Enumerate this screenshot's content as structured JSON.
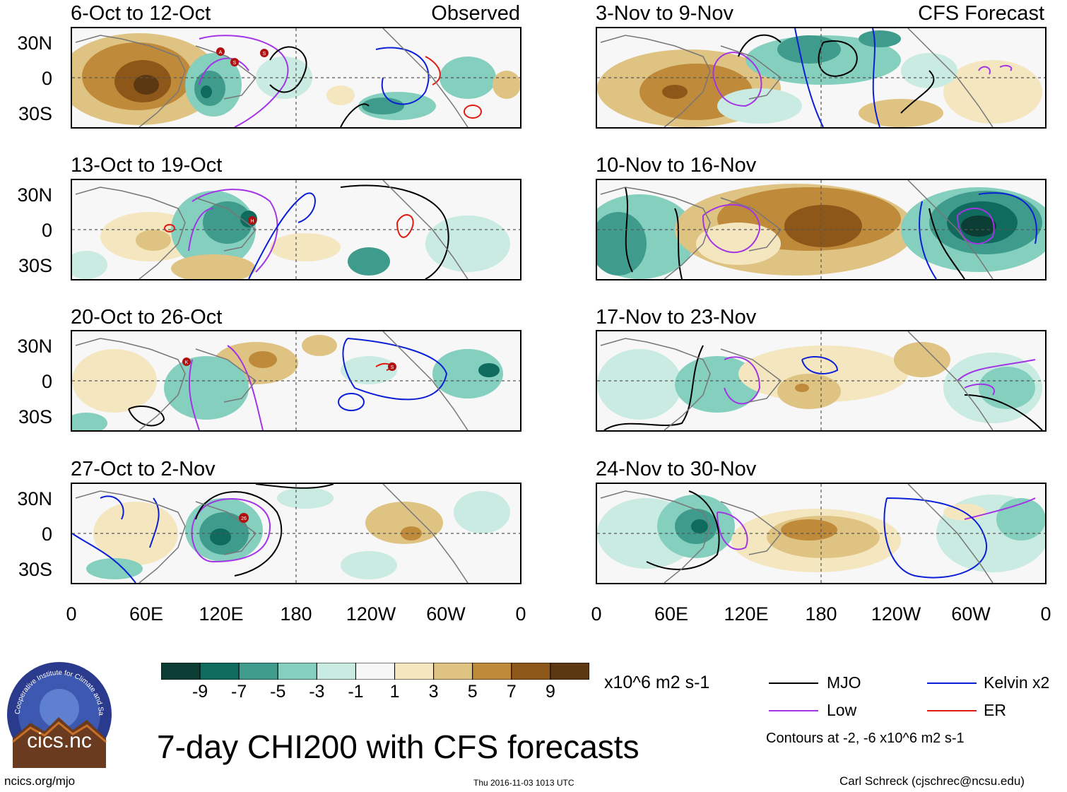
{
  "title": "7-day CHI200 with CFS forecasts",
  "observed_label": "Observed",
  "forecast_label": "CFS Forecast",
  "panels_left": [
    {
      "title": "6-Oct to 12-Oct"
    },
    {
      "title": "13-Oct to 19-Oct"
    },
    {
      "title": "20-Oct to 26-Oct"
    },
    {
      "title": "27-Oct to 2-Nov"
    }
  ],
  "panels_right": [
    {
      "title": "3-Nov to 9-Nov"
    },
    {
      "title": "10-Nov to 16-Nov"
    },
    {
      "title": "17-Nov to 23-Nov"
    },
    {
      "title": "24-Nov to 30-Nov"
    }
  ],
  "lat_labels": [
    "30N",
    "0",
    "30S"
  ],
  "lon_labels": [
    "0",
    "60E",
    "120E",
    "180",
    "120W",
    "60W",
    "0"
  ],
  "colorbar": {
    "labels": [
      "-9",
      "-7",
      "-5",
      "-3",
      "-1",
      "1",
      "3",
      "5",
      "7",
      "9"
    ],
    "units": "x10^6 m2 s-1",
    "colors": [
      "#0b3d35",
      "#0f6b5e",
      "#3f9c8c",
      "#84cfbd",
      "#c9ebe1",
      "#f7f7f7",
      "#f4e6bf",
      "#dfc383",
      "#bf8a3a",
      "#8c5718",
      "#5b3811"
    ]
  },
  "legend": {
    "items": [
      {
        "label": "MJO",
        "color": "#000000"
      },
      {
        "label": "Kelvin x2",
        "color": "#0b1fd6"
      },
      {
        "label": "Low",
        "color": "#a335e6"
      },
      {
        "label": "ER",
        "color": "#e01b12"
      }
    ],
    "note": "Contours at -2, -6 x10^6 m2 s-1"
  },
  "storm_labels": [
    "A",
    "S",
    "S",
    "H",
    "K",
    "S",
    "26"
  ],
  "logo_text": "cics.nc",
  "logo_ring_text": "Cooperative Institute for Climate and Satellites",
  "footer": {
    "left": "ncics.org/mjo",
    "center": "Thu 2016-11-03 1013 UTC",
    "right": "Carl Schreck (cjschrec@ncsu.edu)"
  }
}
